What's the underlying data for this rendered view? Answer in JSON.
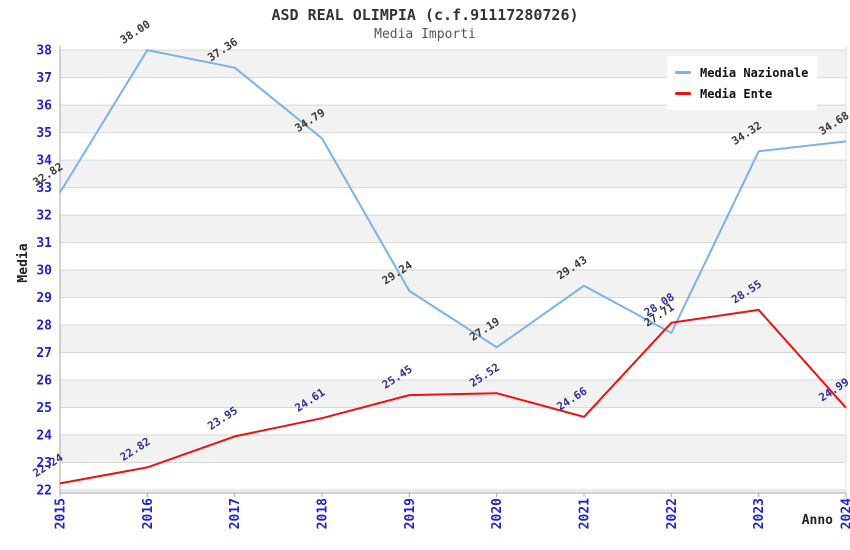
{
  "header": {
    "title": "ASD REAL OLIMPIA (c.f.91117280726)",
    "subtitle": "Media Importi"
  },
  "chart_data": {
    "type": "line",
    "categories": [
      "2015",
      "2016",
      "2017",
      "2018",
      "2019",
      "2020",
      "2021",
      "2022",
      "2023",
      "2024"
    ],
    "series": [
      {
        "name": "Media Nazionale",
        "color": "#7ab3e8",
        "label_color": "#3a3a3a",
        "values": [
          32.82,
          38.0,
          37.36,
          34.79,
          29.24,
          27.19,
          29.43,
          27.71,
          34.32,
          34.68
        ]
      },
      {
        "name": "Media Ente",
        "color": "#ee1111",
        "label_color": "#30309c",
        "values": [
          22.24,
          22.82,
          23.95,
          24.61,
          25.45,
          25.52,
          24.66,
          28.08,
          28.55,
          24.99
        ]
      }
    ],
    "xlabel": "Anno",
    "ylabel": "Media",
    "ylim": [
      21.89,
      38.15
    ],
    "y_ticks": [
      22,
      23,
      24,
      25,
      26,
      27,
      28,
      29,
      30,
      31,
      32,
      33,
      34,
      35,
      36,
      37,
      38
    ],
    "grid": true,
    "legend_position": "top-right",
    "band_color_odd": "#f2f2f2",
    "band_color_even": "#ffffff",
    "gridline_color": "#d8d8d8",
    "spine_color": "#a8a8a8",
    "axis_tick_label_color": "#2222cc",
    "axis_title_color": "#222222"
  }
}
